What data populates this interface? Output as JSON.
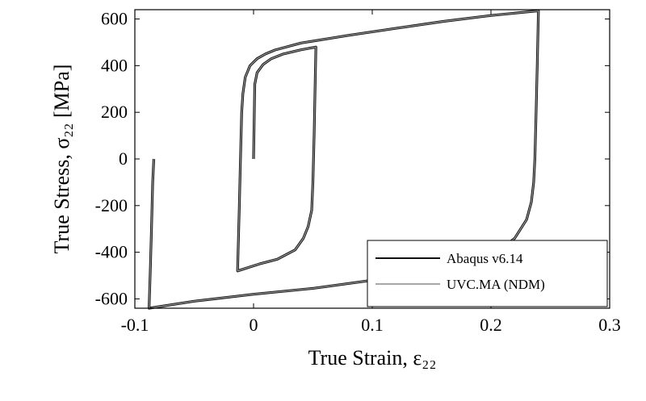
{
  "chart_data": {
    "type": "line",
    "xlabel": "True Strain, ε₂₂",
    "ylabel": "True Stress, σ₂₂ [MPa]",
    "xlim": [
      -0.1,
      0.3
    ],
    "ylim": [
      -640,
      640
    ],
    "xticks": [
      "-0.1",
      "0",
      "0.1",
      "0.2",
      "0.3"
    ],
    "xtick_values": [
      -0.1,
      0,
      0.1,
      0.2,
      0.3
    ],
    "yticks": [
      "-600",
      "-400",
      "-200",
      "0",
      "200",
      "400",
      "600"
    ],
    "ytick_values": [
      -600,
      -400,
      -200,
      0,
      200,
      400,
      600
    ],
    "grid": false,
    "legend_position": "bottom-right",
    "series": [
      {
        "name": "Abaqus v6.14",
        "color": "#111111",
        "x": [
          0,
          0.001,
          0.003,
          0.008,
          0.015,
          0.025,
          0.04,
          0.0525,
          0.051,
          0.05,
          0.049,
          0.046,
          0.042,
          0.035,
          0.02,
          0.005,
          -0.0135,
          -0.012,
          -0.011,
          -0.01,
          -0.009,
          -0.007,
          -0.003,
          0.003,
          0.01,
          0.018,
          0.04,
          0.08,
          0.12,
          0.16,
          0.2,
          0.24,
          0.239,
          0.238,
          0.237,
          0.236,
          0.234,
          0.23,
          0.22,
          0.2,
          0.15,
          0.1,
          0.05,
          0,
          -0.05,
          -0.088,
          -0.087,
          -0.086,
          -0.085,
          -0.084
        ],
        "y": [
          0,
          320,
          370,
          405,
          430,
          450,
          468,
          480,
          100,
          -100,
          -220,
          -290,
          -340,
          -390,
          -430,
          -450,
          -480,
          -200,
          0,
          200,
          280,
          350,
          400,
          430,
          450,
          467,
          497,
          530,
          560,
          590,
          615,
          635,
          400,
          200,
          0,
          -100,
          -185,
          -260,
          -340,
          -420,
          -480,
          -520,
          -555,
          -580,
          -610,
          -640,
          -480,
          -300,
          -100,
          0
        ]
      },
      {
        "name": "UVC.MA (NDM)",
        "color": "#8c8c8c",
        "x": [
          0,
          0.001,
          0.003,
          0.008,
          0.015,
          0.025,
          0.04,
          0.0525,
          0.051,
          0.05,
          0.049,
          0.046,
          0.042,
          0.035,
          0.02,
          0.005,
          -0.0135,
          -0.012,
          -0.011,
          -0.01,
          -0.009,
          -0.007,
          -0.003,
          0.003,
          0.01,
          0.018,
          0.04,
          0.08,
          0.12,
          0.16,
          0.2,
          0.24,
          0.239,
          0.238,
          0.237,
          0.236,
          0.234,
          0.23,
          0.22,
          0.2,
          0.15,
          0.1,
          0.05,
          0,
          -0.05,
          -0.088,
          -0.087,
          -0.086,
          -0.085,
          -0.084
        ],
        "y": [
          0,
          320,
          370,
          405,
          430,
          450,
          468,
          480,
          100,
          -100,
          -220,
          -290,
          -340,
          -390,
          -430,
          -450,
          -480,
          -200,
          0,
          200,
          280,
          350,
          400,
          430,
          450,
          467,
          497,
          530,
          560,
          590,
          615,
          635,
          400,
          200,
          0,
          -100,
          -185,
          -260,
          -340,
          -420,
          -480,
          -520,
          -555,
          -580,
          -610,
          -640,
          -480,
          -300,
          -100,
          0
        ]
      }
    ]
  }
}
